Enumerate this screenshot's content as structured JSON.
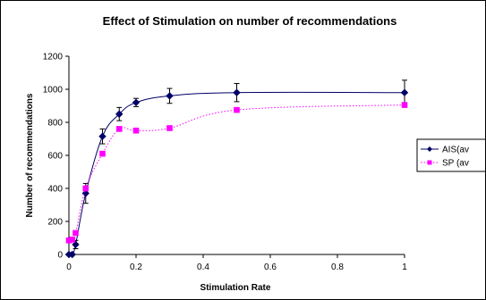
{
  "chart_data": {
    "type": "line",
    "title": "Effect of Stimulation on number of recommendations",
    "xlabel": "Stimulation Rate",
    "ylabel": "Number of recommendations",
    "xlim": [
      0,
      1
    ],
    "ylim": [
      0,
      1200
    ],
    "x_ticks": [
      0,
      0.2,
      0.4,
      0.6,
      0.8,
      1
    ],
    "x_tick_labels": [
      "0",
      "0.2",
      "0.4",
      "0.6",
      "0.8",
      "1"
    ],
    "y_ticks": [
      0,
      200,
      400,
      600,
      800,
      1000,
      1200
    ],
    "y_tick_labels": [
      "0",
      "200",
      "400",
      "600",
      "800",
      "1000",
      "1200"
    ],
    "grid": false,
    "legend_position": "right",
    "series": [
      {
        "name": "AIS(av",
        "color": "#000066",
        "marker": "diamond",
        "line": "solid",
        "x": [
          0,
          0.01,
          0.02,
          0.05,
          0.1,
          0.15,
          0.2,
          0.3,
          0.5,
          1
        ],
        "y": [
          0,
          0,
          60,
          370,
          715,
          850,
          920,
          960,
          980,
          980
        ],
        "error": [
          0,
          0,
          25,
          60,
          45,
          40,
          25,
          45,
          55,
          75
        ]
      },
      {
        "name": "SP (av",
        "color": "#ff00ff",
        "marker": "square",
        "line": "dotted",
        "x": [
          0,
          0.01,
          0.02,
          0.05,
          0.1,
          0.15,
          0.2,
          0.3,
          0.5,
          1
        ],
        "y": [
          85,
          90,
          130,
          400,
          610,
          760,
          750,
          765,
          875,
          905
        ],
        "error": []
      }
    ]
  }
}
